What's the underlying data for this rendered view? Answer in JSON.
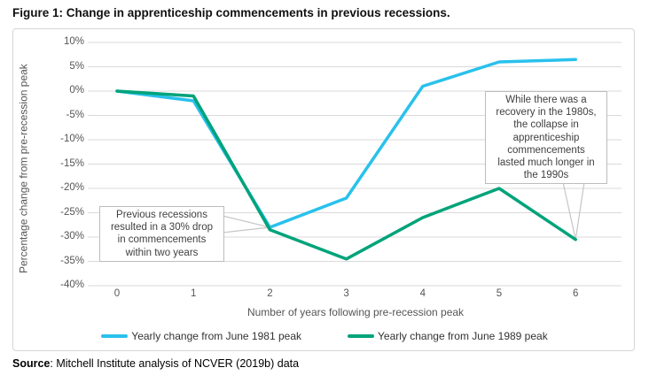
{
  "chart_data": {
    "type": "line",
    "title": "Figure 1: Change in apprenticeship commencements in previous recessions.",
    "categories": [
      "0",
      "1",
      "2",
      "3",
      "4",
      "5",
      "6"
    ],
    "xlabel": "Number of years following pre-recession peak",
    "ylabel": "Percentage change from pre-recession peak",
    "ylim": [
      -40,
      10
    ],
    "ytick_step": 5,
    "ytick_suffix": "%",
    "grid": true,
    "legend_position": "bottom",
    "gridline_color": "#dadada",
    "series": [
      {
        "name": "Yearly change from June 1981 peak",
        "color": "#29c1ec",
        "values": [
          0,
          -2,
          -28,
          -22,
          1,
          6,
          6.5
        ]
      },
      {
        "name": "Yearly change from June 1989 peak",
        "color": "#00a37a",
        "values": [
          0,
          -1,
          -28.5,
          -34.5,
          -26,
          -20,
          -30.5
        ]
      }
    ],
    "annotations": [
      {
        "text": "Previous recessions resulted in a 30% drop in commencements within two years",
        "target_series": 0,
        "target_x": 2
      },
      {
        "text": "While there was a recovery in the 1980s, the collapse in apprenticeship commencements lasted much longer in the 1990s",
        "target_series": 1,
        "target_x": 6
      }
    ]
  },
  "source": {
    "label": "Source",
    "text": ": Mitchell Institute analysis of NCVER (2019b) data"
  }
}
